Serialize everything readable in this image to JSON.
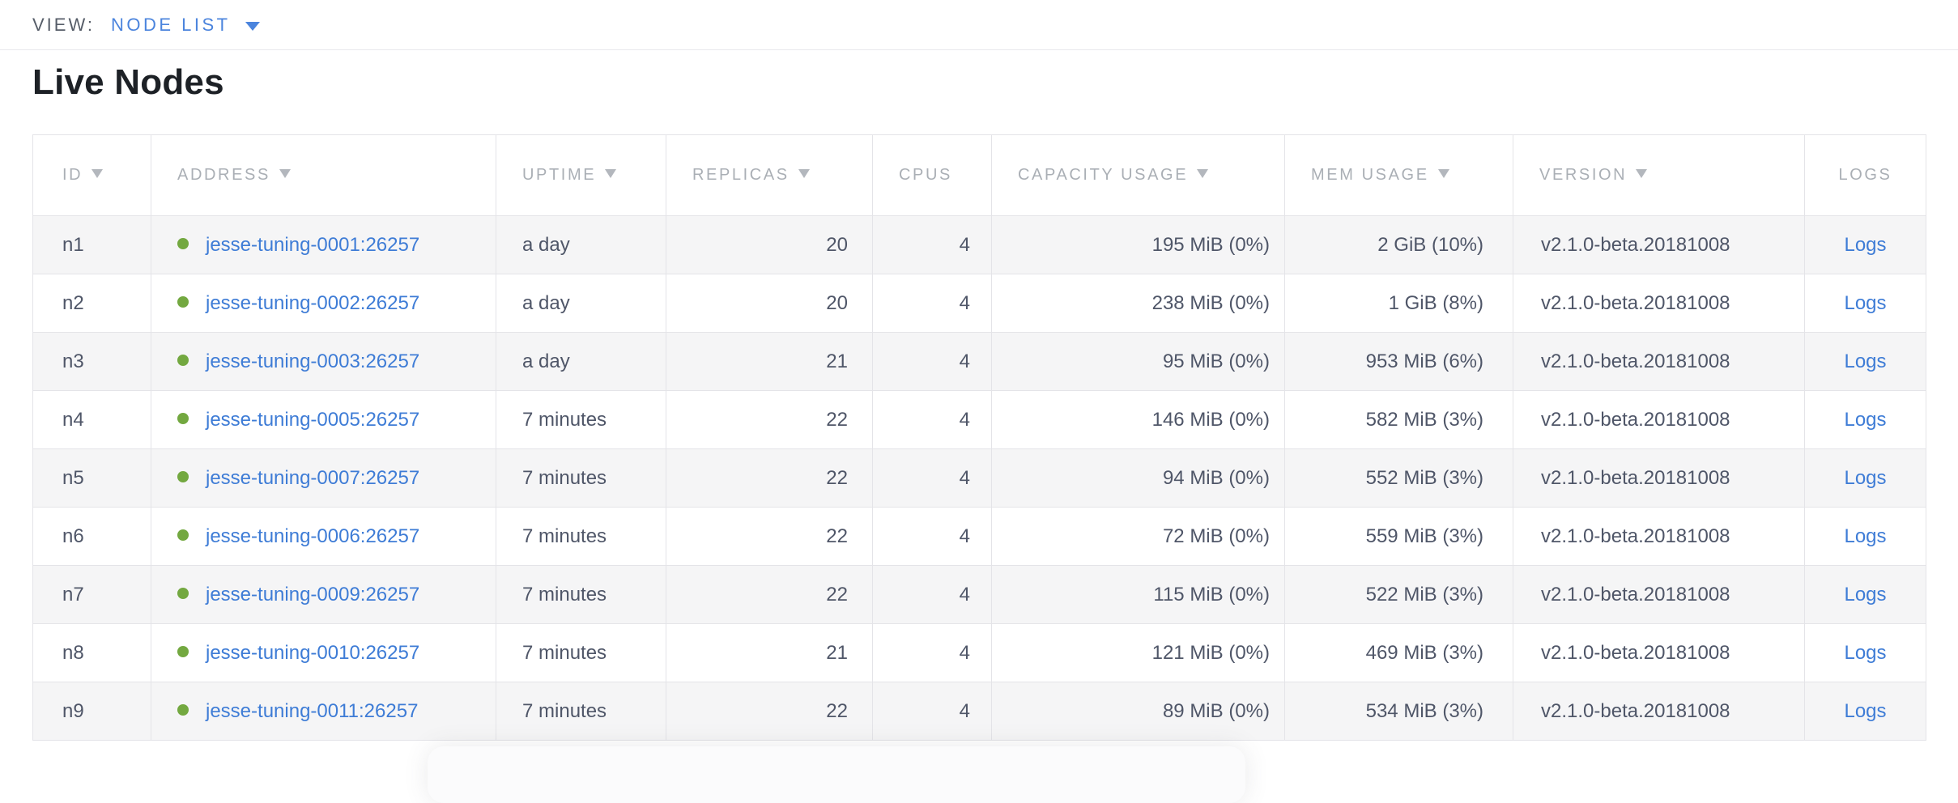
{
  "view_bar": {
    "label": "VIEW:",
    "selected": "NODE LIST"
  },
  "page": {
    "title": "Live Nodes"
  },
  "table": {
    "logs_label": "Logs",
    "columns": [
      {
        "label": "ID",
        "sortable": true
      },
      {
        "label": "ADDRESS",
        "sortable": true
      },
      {
        "label": "UPTIME",
        "sortable": true
      },
      {
        "label": "REPLICAS",
        "sortable": true
      },
      {
        "label": "CPUS",
        "sortable": false
      },
      {
        "label": "CAPACITY USAGE",
        "sortable": true
      },
      {
        "label": "MEM USAGE",
        "sortable": true
      },
      {
        "label": "VERSION",
        "sortable": true
      },
      {
        "label": "LOGS",
        "sortable": false
      }
    ],
    "rows": [
      {
        "id": "n1",
        "address": "jesse-tuning-0001:26257",
        "uptime": "a day",
        "replicas": "20",
        "cpus": "4",
        "capacity": "195 MiB (0%)",
        "mem": "2 GiB (10%)",
        "version": "v2.1.0-beta.20181008"
      },
      {
        "id": "n2",
        "address": "jesse-tuning-0002:26257",
        "uptime": "a day",
        "replicas": "20",
        "cpus": "4",
        "capacity": "238 MiB (0%)",
        "mem": "1 GiB (8%)",
        "version": "v2.1.0-beta.20181008"
      },
      {
        "id": "n3",
        "address": "jesse-tuning-0003:26257",
        "uptime": "a day",
        "replicas": "21",
        "cpus": "4",
        "capacity": "95 MiB (0%)",
        "mem": "953 MiB (6%)",
        "version": "v2.1.0-beta.20181008"
      },
      {
        "id": "n4",
        "address": "jesse-tuning-0005:26257",
        "uptime": "7 minutes",
        "replicas": "22",
        "cpus": "4",
        "capacity": "146 MiB (0%)",
        "mem": "582 MiB (3%)",
        "version": "v2.1.0-beta.20181008"
      },
      {
        "id": "n5",
        "address": "jesse-tuning-0007:26257",
        "uptime": "7 minutes",
        "replicas": "22",
        "cpus": "4",
        "capacity": "94 MiB (0%)",
        "mem": "552 MiB (3%)",
        "version": "v2.1.0-beta.20181008"
      },
      {
        "id": "n6",
        "address": "jesse-tuning-0006:26257",
        "uptime": "7 minutes",
        "replicas": "22",
        "cpus": "4",
        "capacity": "72 MiB (0%)",
        "mem": "559 MiB (3%)",
        "version": "v2.1.0-beta.20181008"
      },
      {
        "id": "n7",
        "address": "jesse-tuning-0009:26257",
        "uptime": "7 minutes",
        "replicas": "22",
        "cpus": "4",
        "capacity": "115 MiB (0%)",
        "mem": "522 MiB (3%)",
        "version": "v2.1.0-beta.20181008"
      },
      {
        "id": "n8",
        "address": "jesse-tuning-0010:26257",
        "uptime": "7 minutes",
        "replicas": "21",
        "cpus": "4",
        "capacity": "121 MiB (0%)",
        "mem": "469 MiB (3%)",
        "version": "v2.1.0-beta.20181008"
      },
      {
        "id": "n9",
        "address": "jesse-tuning-0011:26257",
        "uptime": "7 minutes",
        "replicas": "22",
        "cpus": "4",
        "capacity": "89 MiB (0%)",
        "mem": "534 MiB (3%)",
        "version": "v2.1.0-beta.20181008"
      }
    ]
  },
  "icons": {
    "dropdown_caret": "caret-down",
    "sort_indicator": "triangle-down",
    "node_status": "green-dot"
  },
  "colors": {
    "link_blue": "#3e7cd6",
    "select_blue": "#4b84dd",
    "status_green": "#73a840",
    "header_gray": "#aaafb5",
    "body_slate": "#4f5668",
    "stripe": "#f5f5f6",
    "border": "#e4e4e8"
  }
}
